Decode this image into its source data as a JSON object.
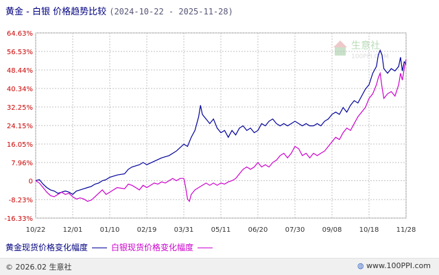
{
  "header": {
    "title": "黄金 - 白银 价格趋势比较",
    "date_range": "(2024-10-22 - 2025-11-28)"
  },
  "watermark": {
    "brand": "生意社",
    "url": "100PPI.COM"
  },
  "footer": {
    "copyright": "© 2026.02 生意社",
    "site": "www.100PPI.com",
    "logo_icon": "globe-icon"
  },
  "colors": {
    "gold": "#000099",
    "silver": "#cc00cc",
    "grid": "#c0c0c0",
    "axis_text": "#cc0000"
  },
  "chart_data": {
    "type": "line",
    "ylim": [
      -16.33,
      64.63
    ],
    "yticks": [
      64.63,
      56.53,
      48.44,
      40.34,
      32.25,
      24.15,
      16.05,
      7.96,
      0,
      -8.23,
      -16.33
    ],
    "ytick_labels": [
      "64.63%",
      "56.53%",
      "48.44%",
      "40.34%",
      "32.25%",
      "24.15%",
      "16.05%",
      "7.96%",
      "0",
      "-8.23%",
      "-16.33%"
    ],
    "xticks": [
      "10/22",
      "12/01",
      "01/10",
      "02/19",
      "03/31",
      "05/11",
      "06/20",
      "07/30",
      "09/08",
      "10/18",
      "11/28"
    ],
    "x_domain": [
      0,
      10
    ],
    "grid": true,
    "legend_position": "bottom",
    "series": [
      {
        "name": "黄金现货价格变化幅度",
        "color": "#000099",
        "points": [
          [
            0,
            0
          ],
          [
            0.1,
            0.5
          ],
          [
            0.2,
            -1.5
          ],
          [
            0.3,
            -3
          ],
          [
            0.4,
            -4
          ],
          [
            0.5,
            -4.5
          ],
          [
            0.6,
            -5.5
          ],
          [
            0.7,
            -5
          ],
          [
            0.8,
            -4.5
          ],
          [
            0.9,
            -5
          ],
          [
            1.0,
            -6
          ],
          [
            1.1,
            -4.5
          ],
          [
            1.2,
            -4
          ],
          [
            1.3,
            -3.5
          ],
          [
            1.4,
            -3
          ],
          [
            1.5,
            -2.5
          ],
          [
            1.6,
            -1.5
          ],
          [
            1.7,
            -1
          ],
          [
            1.8,
            0
          ],
          [
            1.9,
            0.5
          ],
          [
            2.0,
            1.5
          ],
          [
            2.2,
            2.5
          ],
          [
            2.4,
            3
          ],
          [
            2.5,
            5
          ],
          [
            2.6,
            6
          ],
          [
            2.8,
            7
          ],
          [
            2.9,
            8
          ],
          [
            3.0,
            7
          ],
          [
            3.2,
            8.5
          ],
          [
            3.4,
            10
          ],
          [
            3.6,
            11
          ],
          [
            3.8,
            13
          ],
          [
            4.0,
            16
          ],
          [
            4.1,
            15
          ],
          [
            4.2,
            19
          ],
          [
            4.3,
            22
          ],
          [
            4.35,
            25
          ],
          [
            4.4,
            28
          ],
          [
            4.45,
            33
          ],
          [
            4.5,
            29
          ],
          [
            4.55,
            28
          ],
          [
            4.6,
            27
          ],
          [
            4.7,
            25
          ],
          [
            4.8,
            27
          ],
          [
            4.9,
            23
          ],
          [
            5.0,
            21
          ],
          [
            5.1,
            22
          ],
          [
            5.2,
            19
          ],
          [
            5.3,
            22
          ],
          [
            5.4,
            20
          ],
          [
            5.5,
            23
          ],
          [
            5.6,
            24
          ],
          [
            5.7,
            22
          ],
          [
            5.8,
            23
          ],
          [
            5.9,
            21
          ],
          [
            6.0,
            22
          ],
          [
            6.1,
            25
          ],
          [
            6.2,
            24
          ],
          [
            6.3,
            26
          ],
          [
            6.4,
            27
          ],
          [
            6.5,
            25
          ],
          [
            6.6,
            24
          ],
          [
            6.7,
            25
          ],
          [
            6.8,
            24
          ],
          [
            6.9,
            25
          ],
          [
            7.0,
            26
          ],
          [
            7.2,
            24
          ],
          [
            7.3,
            25
          ],
          [
            7.4,
            24
          ],
          [
            7.5,
            24
          ],
          [
            7.6,
            25
          ],
          [
            7.7,
            24
          ],
          [
            7.8,
            26
          ],
          [
            7.9,
            27
          ],
          [
            8.0,
            29
          ],
          [
            8.1,
            30
          ],
          [
            8.2,
            29
          ],
          [
            8.3,
            32
          ],
          [
            8.4,
            30
          ],
          [
            8.5,
            33
          ],
          [
            8.6,
            35
          ],
          [
            8.7,
            34
          ],
          [
            8.8,
            37
          ],
          [
            8.9,
            40
          ],
          [
            9.0,
            42
          ],
          [
            9.1,
            47
          ],
          [
            9.2,
            50
          ],
          [
            9.25,
            55
          ],
          [
            9.3,
            57
          ],
          [
            9.35,
            55
          ],
          [
            9.4,
            49
          ],
          [
            9.5,
            47
          ],
          [
            9.6,
            49
          ],
          [
            9.7,
            48
          ],
          [
            9.8,
            50
          ],
          [
            9.85,
            54
          ],
          [
            9.9,
            48
          ],
          [
            9.95,
            52
          ],
          [
            10.0,
            51
          ]
        ]
      },
      {
        "name": "白银现货价格变化幅度",
        "color": "#cc00cc",
        "points": [
          [
            0,
            0
          ],
          [
            0.1,
            -1
          ],
          [
            0.2,
            -3
          ],
          [
            0.3,
            -5
          ],
          [
            0.4,
            -6.5
          ],
          [
            0.5,
            -7
          ],
          [
            0.6,
            -6
          ],
          [
            0.7,
            -5
          ],
          [
            0.8,
            -6
          ],
          [
            0.9,
            -5.5
          ],
          [
            1.0,
            -7
          ],
          [
            1.1,
            -8
          ],
          [
            1.2,
            -7.5
          ],
          [
            1.3,
            -8
          ],
          [
            1.4,
            -9
          ],
          [
            1.5,
            -8.5
          ],
          [
            1.6,
            -7
          ],
          [
            1.7,
            -5.5
          ],
          [
            1.8,
            -4
          ],
          [
            1.9,
            -6
          ],
          [
            2.0,
            -5
          ],
          [
            2.1,
            -4
          ],
          [
            2.2,
            -3
          ],
          [
            2.4,
            -3.5
          ],
          [
            2.5,
            -1.5
          ],
          [
            2.6,
            -2
          ],
          [
            2.7,
            -3
          ],
          [
            2.8,
            -4
          ],
          [
            2.9,
            -2
          ],
          [
            3.0,
            -3
          ],
          [
            3.1,
            -2
          ],
          [
            3.2,
            -1
          ],
          [
            3.3,
            -1.5
          ],
          [
            3.4,
            -0.5
          ],
          [
            3.5,
            -1
          ],
          [
            3.6,
            0
          ],
          [
            3.7,
            1
          ],
          [
            3.8,
            0
          ],
          [
            3.9,
            1
          ],
          [
            4.0,
            1
          ],
          [
            4.05,
            -3
          ],
          [
            4.1,
            -8
          ],
          [
            4.15,
            -9
          ],
          [
            4.2,
            -6
          ],
          [
            4.3,
            -4
          ],
          [
            4.4,
            -3
          ],
          [
            4.5,
            -2
          ],
          [
            4.6,
            -1
          ],
          [
            4.7,
            -2
          ],
          [
            4.8,
            -1
          ],
          [
            4.9,
            -2
          ],
          [
            5.0,
            -1
          ],
          [
            5.1,
            -1.5
          ],
          [
            5.2,
            -0.5
          ],
          [
            5.3,
            0
          ],
          [
            5.4,
            1
          ],
          [
            5.5,
            3
          ],
          [
            5.6,
            5
          ],
          [
            5.7,
            6
          ],
          [
            5.8,
            5
          ],
          [
            5.9,
            6
          ],
          [
            6.0,
            8
          ],
          [
            6.1,
            6
          ],
          [
            6.2,
            7
          ],
          [
            6.3,
            6
          ],
          [
            6.4,
            8
          ],
          [
            6.5,
            9
          ],
          [
            6.6,
            11
          ],
          [
            6.7,
            12
          ],
          [
            6.8,
            10
          ],
          [
            6.9,
            12
          ],
          [
            7.0,
            15
          ],
          [
            7.1,
            14
          ],
          [
            7.2,
            11
          ],
          [
            7.3,
            12
          ],
          [
            7.4,
            10
          ],
          [
            7.5,
            12
          ],
          [
            7.6,
            11
          ],
          [
            7.7,
            12
          ],
          [
            7.8,
            13
          ],
          [
            7.9,
            15
          ],
          [
            8.0,
            17
          ],
          [
            8.1,
            19
          ],
          [
            8.2,
            18
          ],
          [
            8.3,
            21
          ],
          [
            8.4,
            23
          ],
          [
            8.5,
            22
          ],
          [
            8.6,
            25
          ],
          [
            8.7,
            28
          ],
          [
            8.8,
            30
          ],
          [
            8.9,
            32
          ],
          [
            9.0,
            36
          ],
          [
            9.1,
            38
          ],
          [
            9.2,
            42
          ],
          [
            9.25,
            45
          ],
          [
            9.3,
            47
          ],
          [
            9.35,
            41
          ],
          [
            9.4,
            36
          ],
          [
            9.5,
            38
          ],
          [
            9.6,
            39
          ],
          [
            9.7,
            37
          ],
          [
            9.8,
            42
          ],
          [
            9.85,
            47
          ],
          [
            9.9,
            44
          ],
          [
            9.95,
            49
          ],
          [
            10.0,
            53
          ]
        ]
      }
    ]
  }
}
